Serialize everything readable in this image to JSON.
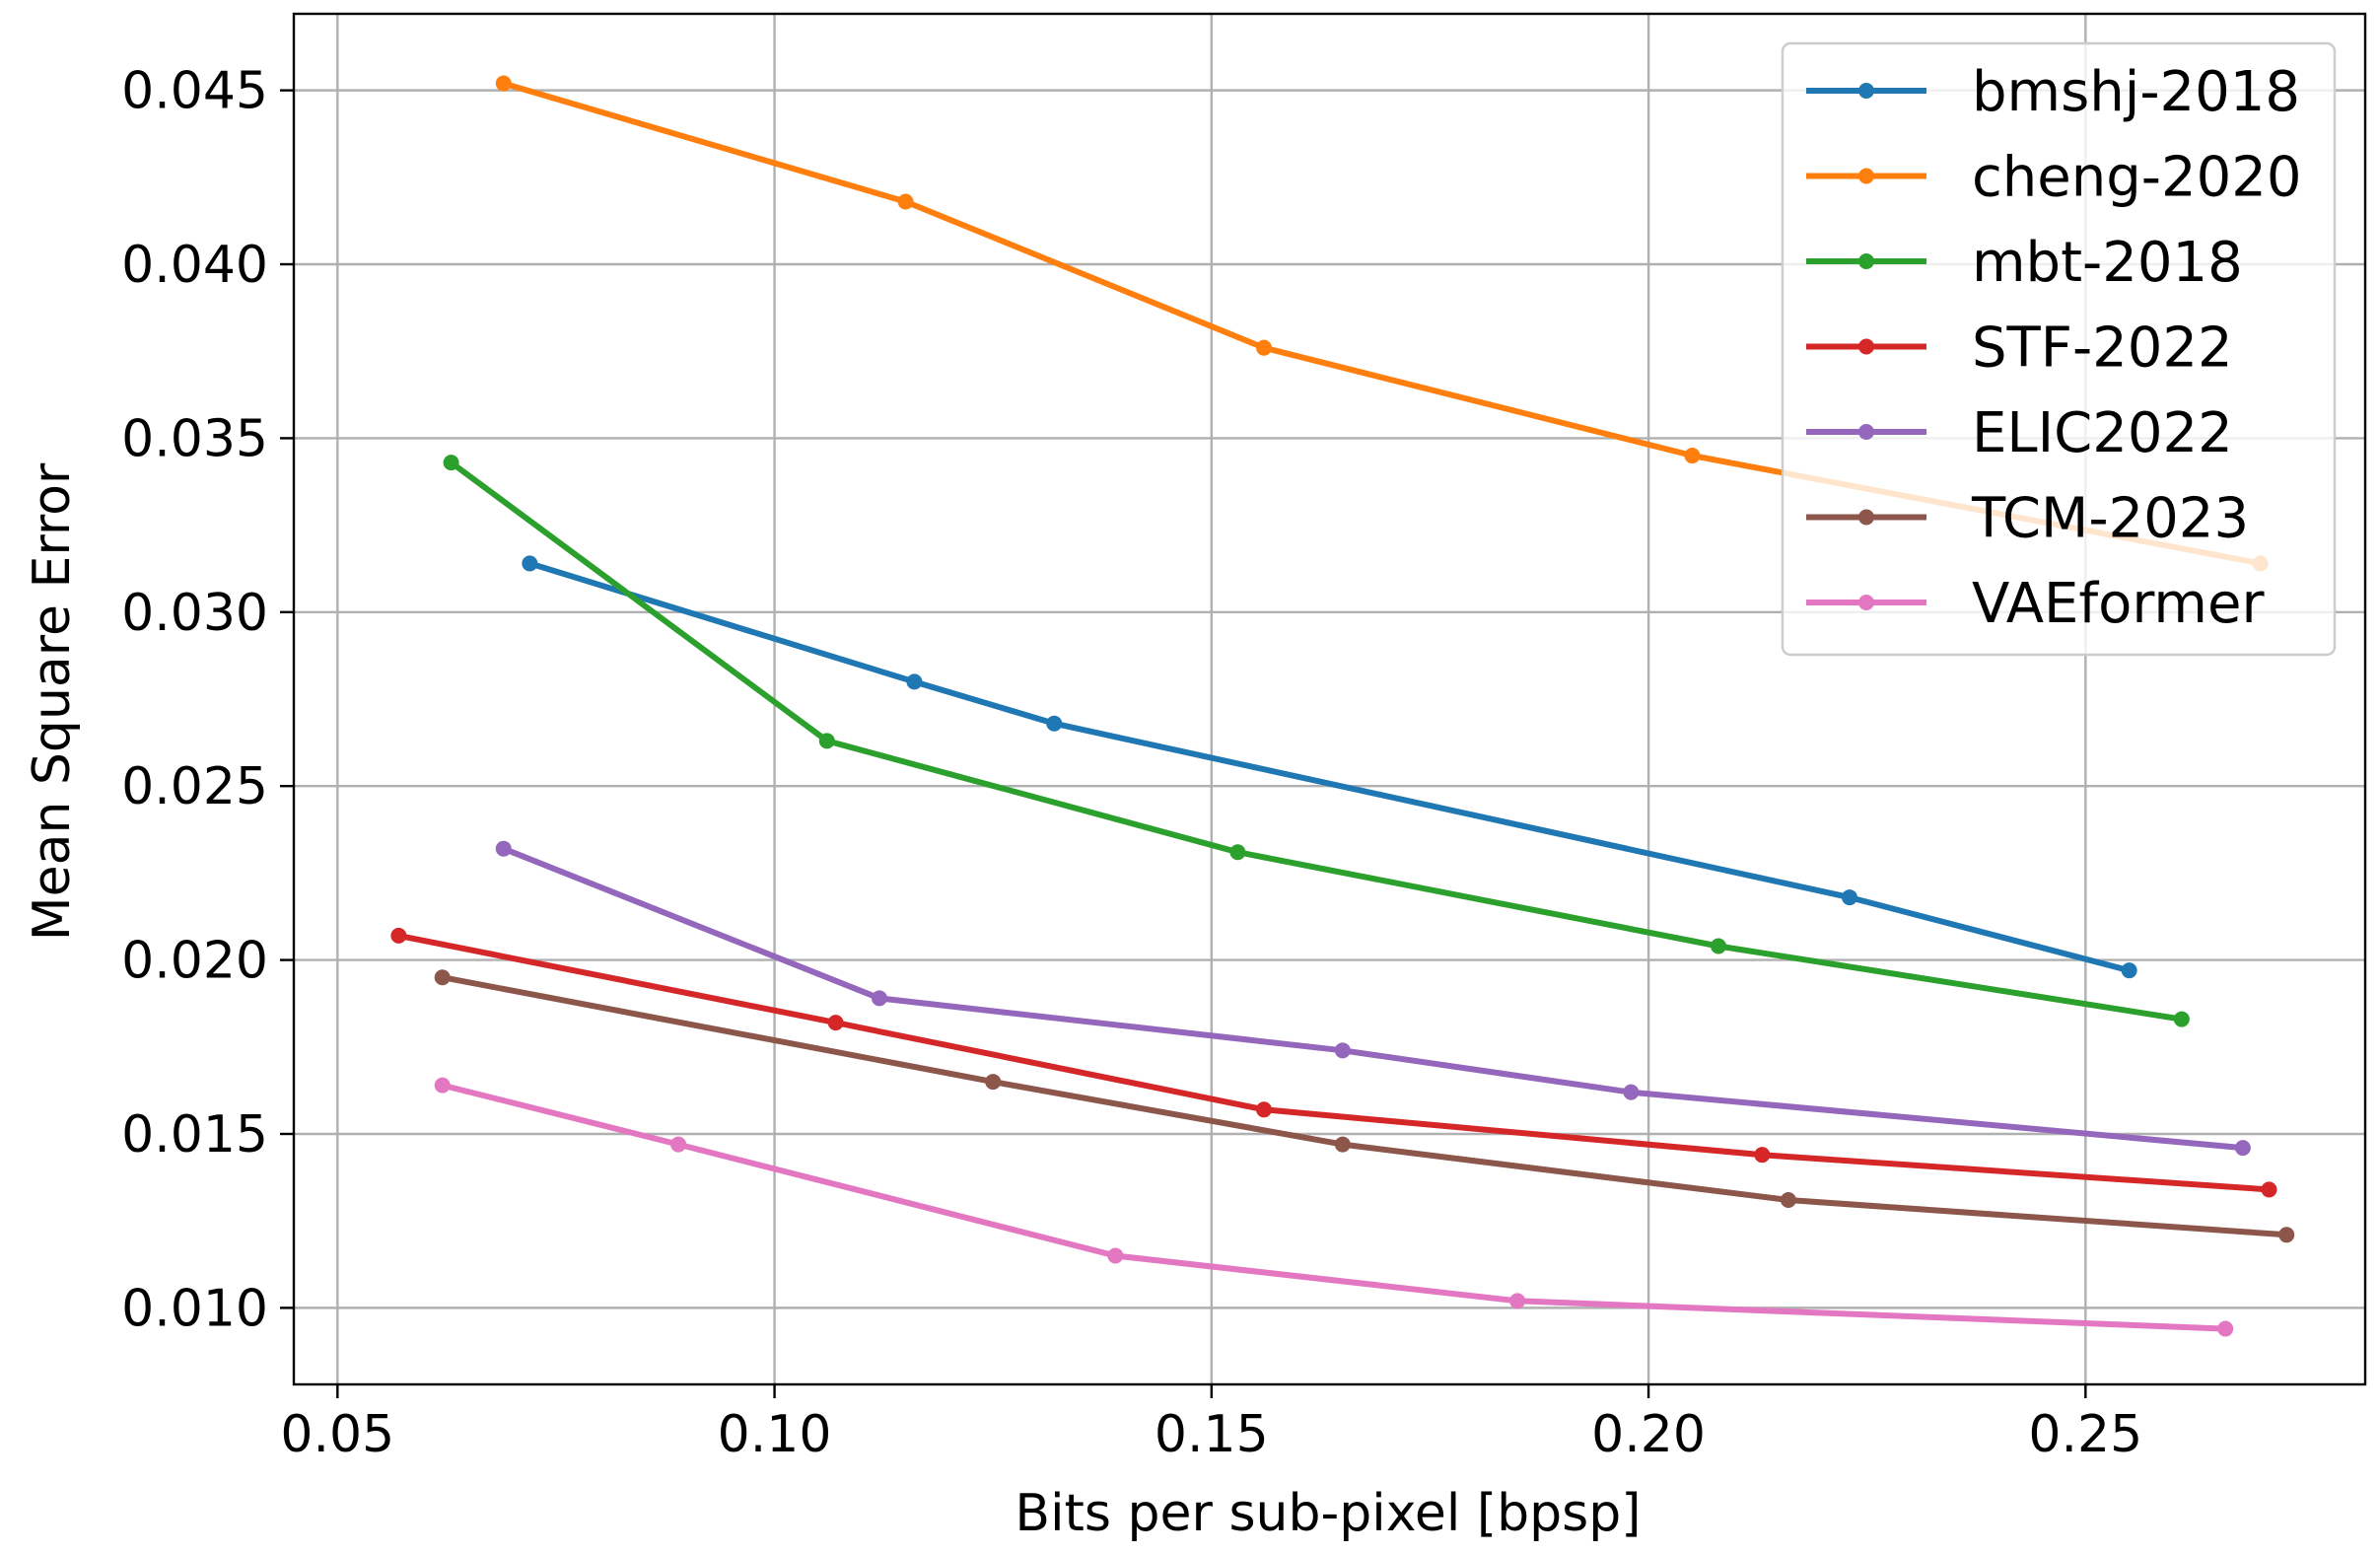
{
  "chart_data": {
    "type": "line",
    "title": "",
    "xlabel": "Bits per sub-pixel [bpsp]",
    "ylabel": "Mean Square Error",
    "xlim": [
      0.045,
      0.282
    ],
    "ylim": [
      0.0078,
      0.0472
    ],
    "x_ticks": [
      0.05,
      0.1,
      0.15,
      0.2,
      0.25
    ],
    "x_tick_labels": [
      "0.05",
      "0.10",
      "0.15",
      "0.20",
      "0.25"
    ],
    "y_ticks": [
      0.01,
      0.015,
      0.02,
      0.025,
      0.03,
      0.035,
      0.04,
      0.045
    ],
    "y_tick_labels": [
      "0.010",
      "0.015",
      "0.020",
      "0.025",
      "0.030",
      "0.035",
      "0.040",
      "0.045"
    ],
    "grid": true,
    "legend_position": "top-right",
    "series": [
      {
        "name": "bmshj-2018",
        "color": "#1f77b4",
        "x": [
          0.072,
          0.116,
          0.132,
          0.223,
          0.255
        ],
        "y": [
          0.0314,
          0.028,
          0.0268,
          0.0218,
          0.0197
        ]
      },
      {
        "name": "cheng-2020",
        "color": "#ff7f0e",
        "x": [
          0.069,
          0.115,
          0.156,
          0.205,
          0.27
        ],
        "y": [
          0.0452,
          0.0418,
          0.0376,
          0.0345,
          0.0314
        ]
      },
      {
        "name": "mbt-2018",
        "color": "#2ca02c",
        "x": [
          0.063,
          0.106,
          0.153,
          0.208,
          0.261
        ],
        "y": [
          0.0343,
          0.0263,
          0.0231,
          0.0204,
          0.0183
        ]
      },
      {
        "name": "STF-2022",
        "color": "#d62728",
        "x": [
          0.057,
          0.107,
          0.156,
          0.213,
          0.271
        ],
        "y": [
          0.0207,
          0.0182,
          0.0157,
          0.0144,
          0.0134
        ]
      },
      {
        "name": "ELIC2022",
        "color": "#9467bd",
        "x": [
          0.069,
          0.112,
          0.165,
          0.198,
          0.268
        ],
        "y": [
          0.0232,
          0.0189,
          0.0174,
          0.0162,
          0.0146
        ]
      },
      {
        "name": "TCM-2023",
        "color": "#8c564b",
        "x": [
          0.062,
          0.125,
          0.165,
          0.216,
          0.273
        ],
        "y": [
          0.0195,
          0.0165,
          0.0147,
          0.0131,
          0.0121
        ]
      },
      {
        "name": "VAEformer",
        "color": "#e377c2",
        "x": [
          0.062,
          0.089,
          0.139,
          0.185,
          0.266
        ],
        "y": [
          0.0164,
          0.0147,
          0.0115,
          0.0102,
          0.0094
        ]
      }
    ]
  }
}
